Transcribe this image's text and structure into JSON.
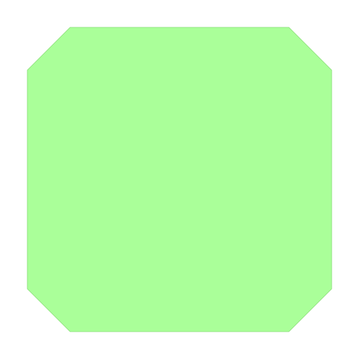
{
  "shape": {
    "kind": "octagon",
    "fill_color": "#aaff99",
    "edge_color": "#88dd77"
  },
  "background_color": "#ffffff"
}
